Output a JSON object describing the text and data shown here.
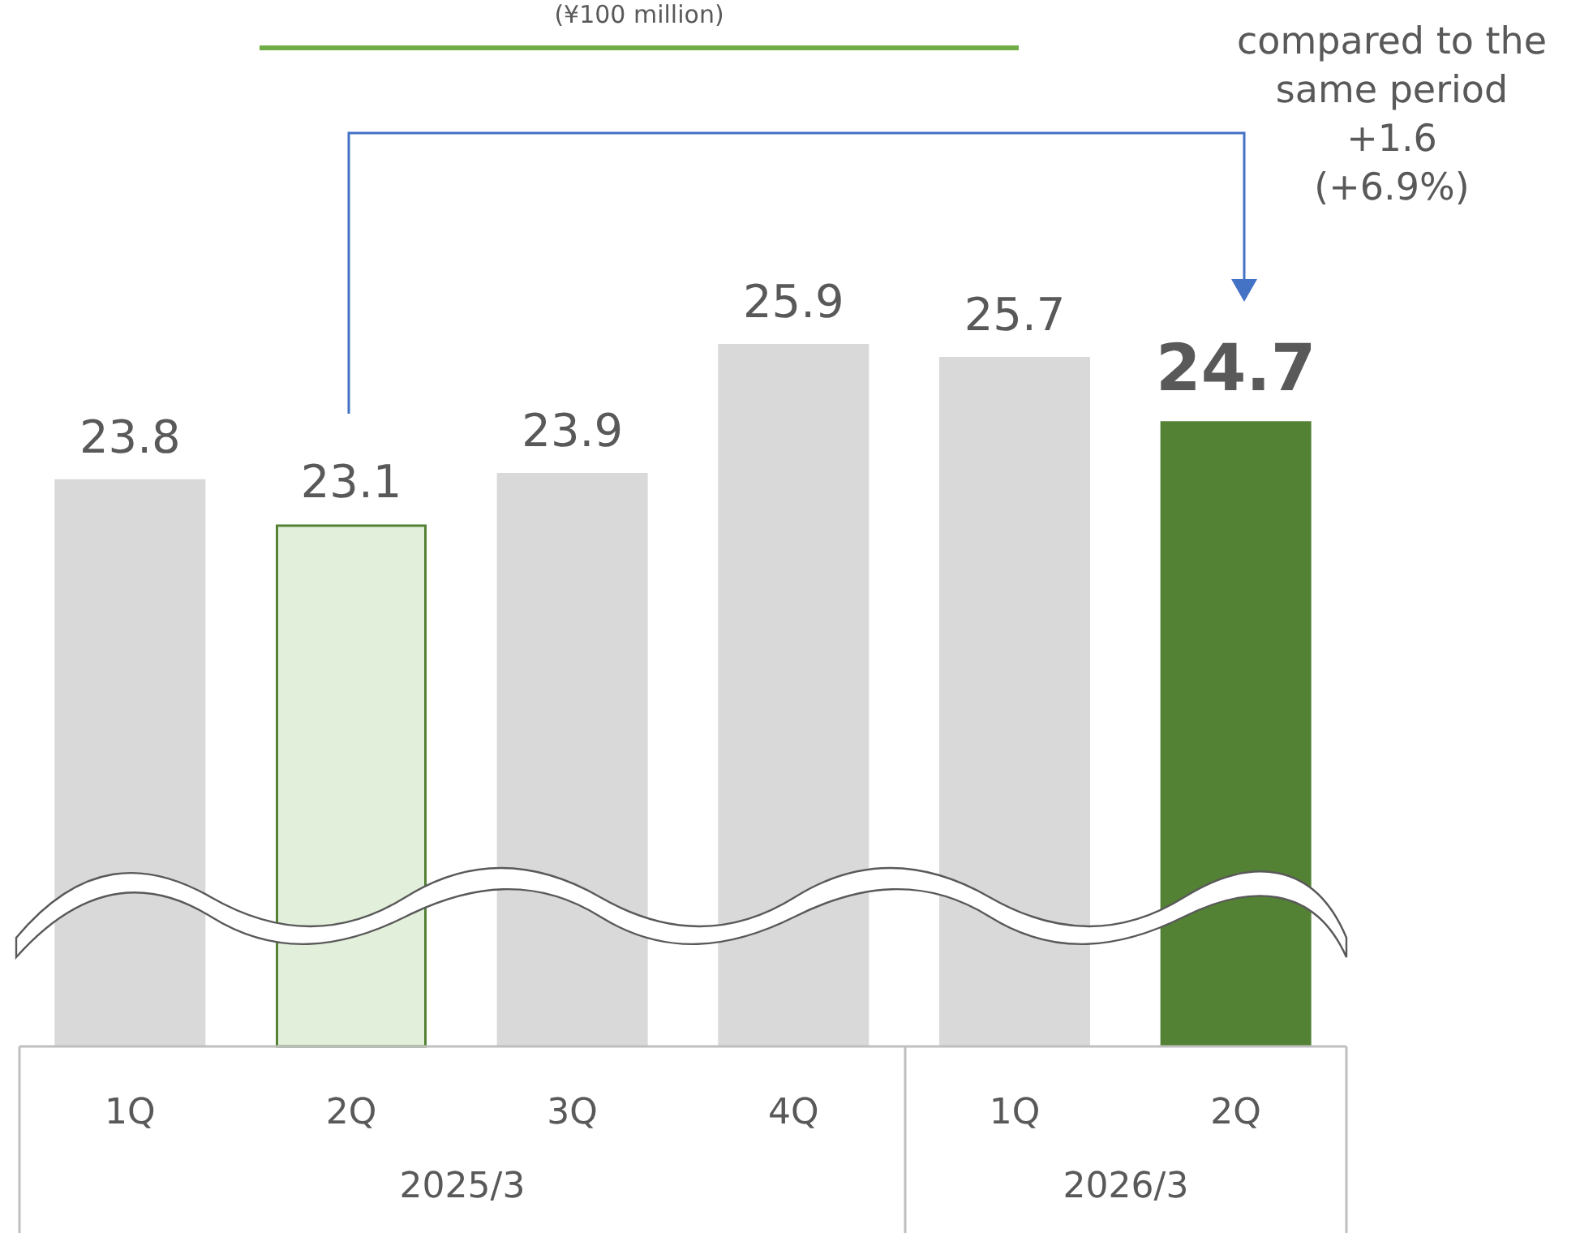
{
  "chart_data": {
    "type": "bar",
    "title": "(¥100 million)",
    "categories": [
      "1Q",
      "2Q",
      "3Q",
      "4Q",
      "1Q",
      "2Q"
    ],
    "values": [
      23.8,
      23.1,
      23.9,
      25.9,
      25.7,
      24.7
    ],
    "colors": [
      "#d9d9d9",
      "#e2efda",
      "#d9d9d9",
      "#d9d9d9",
      "#d9d9d9",
      "#548235"
    ],
    "ylim": [
      15,
      25.9
    ],
    "data_labels": true,
    "annotations": [
      "compared to the same period\n+1.6\n(+6.9%)",
      "2025/3",
      "2026/3"
    ]
  }
}
